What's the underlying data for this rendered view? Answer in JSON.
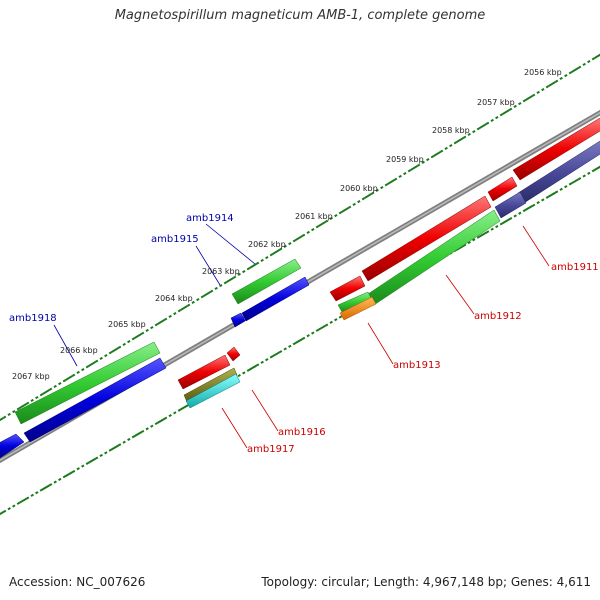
{
  "title": "Magnetospirillum magneticum AMB-1, complete genome",
  "accession": "Accession: NC_007626",
  "topology": "Topology: circular; Length: 4,967,148 bp; Genes: 4,611",
  "colors": {
    "backbone": "#808080",
    "ticks": "#1a7a1a",
    "green": "#33cc33",
    "blue": "#0000dd",
    "red": "#ee0000",
    "purple": "#4a4a9a",
    "orange": "#ff8800",
    "olive": "#8a8a30",
    "cyan": "#33cccc",
    "label_blue": "#0000aa",
    "label_red": "#cc0000"
  },
  "kbp_labels": [
    "2056 kbp",
    "2057 kbp",
    "2058 kbp",
    "2059 kbp",
    "2060 kbp",
    "2061 kbp",
    "2062 kbp",
    "2063 kbp",
    "2064 kbp",
    "2065 kbp",
    "2066 kbp",
    "2067 kbp"
  ],
  "gene_labels_top": [
    "amb1914",
    "amb1915",
    "amb1918"
  ],
  "gene_labels_bottom": [
    "amb1911",
    "amb1912",
    "amb1913",
    "amb1916",
    "amb1917"
  ]
}
